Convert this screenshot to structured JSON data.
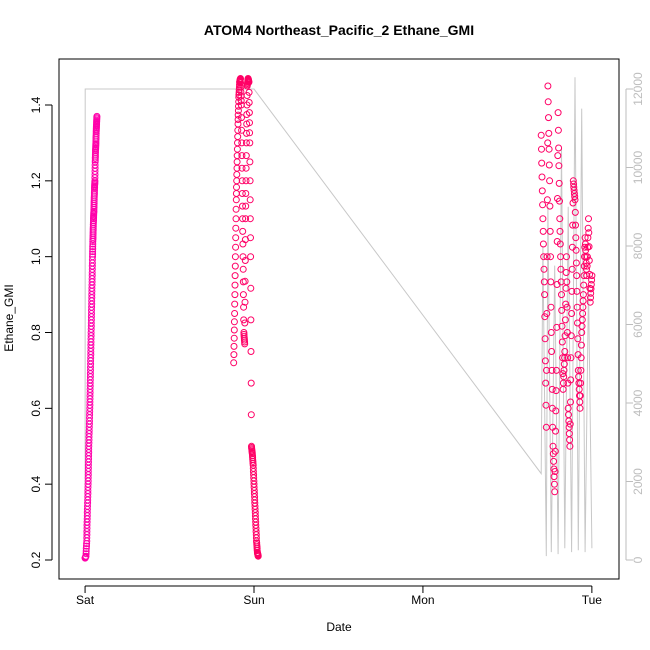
{
  "chart_data": {
    "type": "scatter",
    "title": "ATOM4 Northeast_Pacific_2 Ethane_GMI",
    "xlabel": "Date",
    "ylabel": "Ethane_GMI",
    "x_ticks": [
      "Sat",
      "Sun",
      "Mon",
      "Tue"
    ],
    "ylim": [
      0.2,
      1.5
    ],
    "y_ticks": [
      "0.2",
      "0.4",
      "0.6",
      "0.8",
      "1.0",
      "1.2",
      "1.4"
    ],
    "y2lim": [
      0,
      12500
    ],
    "y2_ticks": [
      "0",
      "2000",
      "4000",
      "6000",
      "8000",
      "10000",
      "12000"
    ],
    "grid": false,
    "colors": {
      "points": "#ff00aa",
      "points_dense": "#ff0066",
      "altitude_line": "#c8c8c8",
      "frame": "#000000"
    },
    "series": [
      {
        "marker": "open-circle",
        "axis": "left",
        "x": [
          0.0,
          0.005,
          0.01,
          0.012,
          0.015,
          0.018,
          0.02,
          0.022,
          0.025,
          0.028,
          0.03,
          0.032,
          0.034,
          0.036,
          0.038,
          0.04,
          0.042,
          0.044,
          0.046,
          0.048,
          0.05,
          0.052,
          0.054,
          0.056,
          0.058,
          0.06,
          0.062,
          0.064,
          0.066,
          0.068,
          0.07,
          0.88,
          0.885,
          0.89,
          0.895,
          0.9,
          0.905,
          0.91,
          0.915,
          0.92,
          0.925,
          0.93,
          0.935,
          0.94,
          0.945,
          0.95,
          0.955,
          0.96,
          0.965,
          0.97,
          0.975,
          0.98,
          0.985,
          0.99,
          0.995,
          1.0,
          1.005,
          1.01,
          1.015,
          1.02,
          1.025,
          2.7,
          2.71,
          2.72,
          2.73,
          2.74,
          2.75,
          2.76,
          2.77,
          2.78,
          2.79,
          2.8,
          2.81,
          2.82,
          2.83,
          2.84,
          2.85,
          2.86,
          2.87,
          2.88,
          2.89,
          2.9,
          2.91,
          2.92,
          2.93,
          2.94,
          2.95,
          2.96,
          2.97,
          2.98,
          2.99,
          3.0
        ],
        "y": [
          0.205,
          0.21,
          0.25,
          0.3,
          0.35,
          0.4,
          0.45,
          0.5,
          0.55,
          0.6,
          0.65,
          0.7,
          0.75,
          0.8,
          0.85,
          0.9,
          0.95,
          1.0,
          1.04,
          1.07,
          1.1,
          1.12,
          1.15,
          1.18,
          1.2,
          1.25,
          1.28,
          1.3,
          1.33,
          1.35,
          1.37,
          0.72,
          0.85,
          1.0,
          1.15,
          1.25,
          1.35,
          1.42,
          1.46,
          1.47,
          1.4,
          1.2,
          1.0,
          0.8,
          0.77,
          1.1,
          1.3,
          1.45,
          1.47,
          1.46,
          1.3,
          1.0,
          0.5,
          0.48,
          0.45,
          0.4,
          0.35,
          0.3,
          0.25,
          0.22,
          0.21,
          1.32,
          1.1,
          0.9,
          0.55,
          1.45,
          1.2,
          0.8,
          0.5,
          0.38,
          0.7,
          1.38,
          1.1,
          0.9,
          0.65,
          0.75,
          1.0,
          0.6,
          0.5,
          0.85,
          1.2,
          1.15,
          0.95,
          0.7,
          0.6,
          0.8,
          0.9,
          1.05,
          0.95,
          1.1,
          0.88,
          0.95
        ]
      },
      {
        "name": "",
        "axis": "right",
        "marker": "line",
        "x": [
          0.0,
          0.001,
          0.002,
          0.98,
          1.0,
          2.7,
          2.71,
          2.73,
          2.74,
          2.76,
          2.78,
          2.8,
          2.82,
          2.84,
          2.86,
          2.88,
          2.9,
          2.92,
          2.94,
          2.96,
          2.98,
          3.0
        ],
        "y": [
          500,
          12000,
          12000,
          12000,
          12000,
          2200,
          8000,
          100,
          9000,
          200,
          7500,
          150,
          10500,
          300,
          9000,
          200,
          12300,
          250,
          11500,
          200,
          7000,
          300
        ]
      }
    ]
  }
}
